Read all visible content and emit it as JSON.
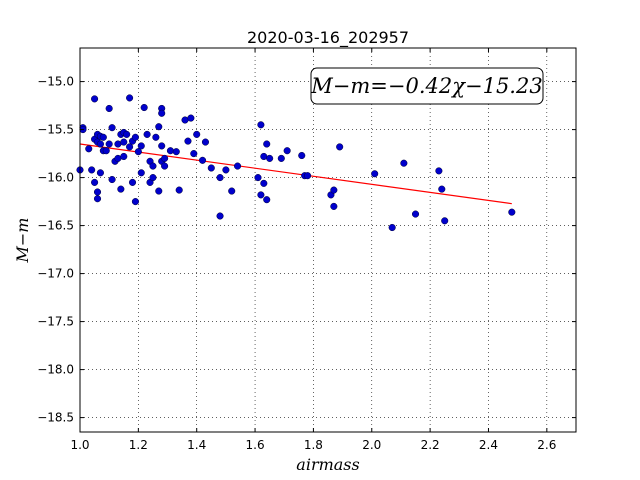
{
  "chart_data": {
    "type": "scatter",
    "title": "2020-03-16_202957",
    "xlabel": "airmass",
    "ylabel": "M−m",
    "xlim": [
      1.0,
      2.7
    ],
    "ylim": [
      -18.65,
      -14.65
    ],
    "xticks": [
      "1.0",
      "1.2",
      "1.4",
      "1.6",
      "1.8",
      "2.0",
      "2.2",
      "2.4",
      "2.6"
    ],
    "yticks": [
      "−15.0",
      "−15.5",
      "−16.0",
      "−16.5",
      "−17.0",
      "−17.5",
      "−18.0",
      "−18.5"
    ],
    "grid": true,
    "annotation": "M−m=−0.42χ−15.23",
    "fit": {
      "slope": -0.42,
      "intercept": -15.23,
      "x_range": [
        1.0,
        2.48
      ],
      "color": "#ff0000"
    },
    "point_color": "#0000cc",
    "points": [
      [
        1.0,
        -15.92
      ],
      [
        1.01,
        -15.48
      ],
      [
        1.01,
        -15.5
      ],
      [
        1.03,
        -15.7
      ],
      [
        1.04,
        -15.92
      ],
      [
        1.05,
        -15.6
      ],
      [
        1.05,
        -15.18
      ],
      [
        1.05,
        -16.05
      ],
      [
        1.06,
        -15.63
      ],
      [
        1.06,
        -15.55
      ],
      [
        1.06,
        -16.15
      ],
      [
        1.06,
        -16.22
      ],
      [
        1.07,
        -15.65
      ],
      [
        1.07,
        -15.57
      ],
      [
        1.07,
        -15.95
      ],
      [
        1.08,
        -15.58
      ],
      [
        1.08,
        -15.72
      ],
      [
        1.09,
        -15.72
      ],
      [
        1.1,
        -15.65
      ],
      [
        1.1,
        -15.28
      ],
      [
        1.11,
        -15.48
      ],
      [
        1.11,
        -16.02
      ],
      [
        1.12,
        -15.83
      ],
      [
        1.13,
        -15.8
      ],
      [
        1.13,
        -15.65
      ],
      [
        1.14,
        -15.55
      ],
      [
        1.14,
        -16.12
      ],
      [
        1.15,
        -15.78
      ],
      [
        1.15,
        -15.53
      ],
      [
        1.15,
        -15.63
      ],
      [
        1.16,
        -15.55
      ],
      [
        1.17,
        -15.17
      ],
      [
        1.17,
        -15.68
      ],
      [
        1.18,
        -16.05
      ],
      [
        1.18,
        -15.62
      ],
      [
        1.19,
        -15.58
      ],
      [
        1.19,
        -16.25
      ],
      [
        1.2,
        -15.73
      ],
      [
        1.21,
        -15.67
      ],
      [
        1.21,
        -15.95
      ],
      [
        1.22,
        -15.27
      ],
      [
        1.23,
        -15.55
      ],
      [
        1.24,
        -16.05
      ],
      [
        1.24,
        -15.83
      ],
      [
        1.25,
        -15.88
      ],
      [
        1.25,
        -16.0
      ],
      [
        1.26,
        -15.58
      ],
      [
        1.27,
        -15.47
      ],
      [
        1.27,
        -16.14
      ],
      [
        1.28,
        -15.28
      ],
      [
        1.28,
        -15.33
      ],
      [
        1.28,
        -15.83
      ],
      [
        1.28,
        -15.67
      ],
      [
        1.29,
        -15.88
      ],
      [
        1.29,
        -15.8
      ],
      [
        1.31,
        -15.72
      ],
      [
        1.33,
        -15.73
      ],
      [
        1.34,
        -16.13
      ],
      [
        1.36,
        -15.4
      ],
      [
        1.37,
        -15.62
      ],
      [
        1.38,
        -15.38
      ],
      [
        1.39,
        -15.75
      ],
      [
        1.4,
        -15.55
      ],
      [
        1.42,
        -15.82
      ],
      [
        1.43,
        -15.63
      ],
      [
        1.45,
        -15.9
      ],
      [
        1.48,
        -16.0
      ],
      [
        1.48,
        -16.4
      ],
      [
        1.5,
        -15.92
      ],
      [
        1.52,
        -16.14
      ],
      [
        1.54,
        -15.88
      ],
      [
        1.61,
        -16.0
      ],
      [
        1.62,
        -15.45
      ],
      [
        1.62,
        -16.18
      ],
      [
        1.63,
        -15.78
      ],
      [
        1.63,
        -16.06
      ],
      [
        1.64,
        -15.65
      ],
      [
        1.64,
        -16.23
      ],
      [
        1.65,
        -15.8
      ],
      [
        1.69,
        -15.8
      ],
      [
        1.71,
        -15.72
      ],
      [
        1.76,
        -15.77
      ],
      [
        1.77,
        -15.98
      ],
      [
        1.78,
        -15.98
      ],
      [
        1.86,
        -16.18
      ],
      [
        1.87,
        -16.13
      ],
      [
        1.87,
        -16.3
      ],
      [
        1.89,
        -15.68
      ],
      [
        2.01,
        -15.96
      ],
      [
        2.07,
        -16.52
      ],
      [
        2.11,
        -15.85
      ],
      [
        2.15,
        -16.38
      ],
      [
        2.23,
        -15.93
      ],
      [
        2.24,
        -16.12
      ],
      [
        2.25,
        -16.45
      ],
      [
        2.48,
        -16.36
      ]
    ]
  }
}
